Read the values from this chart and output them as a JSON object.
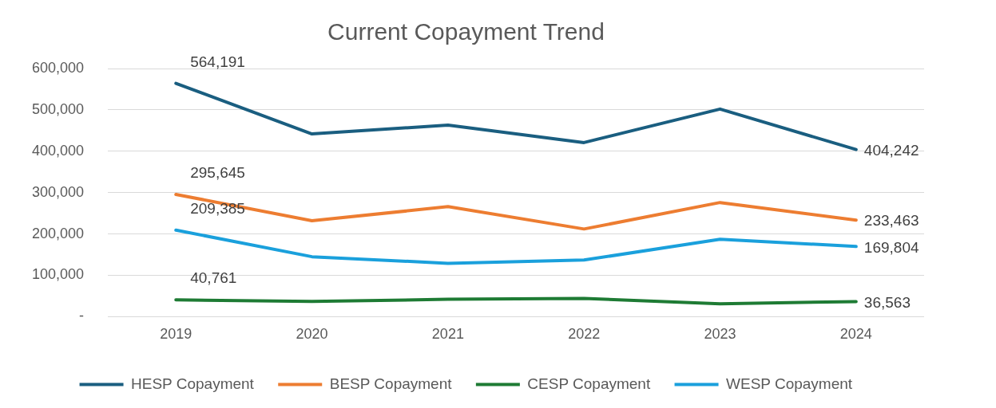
{
  "chart_data": {
    "type": "line",
    "title": "Current Copayment Trend",
    "categories": [
      "2019",
      "2020",
      "2021",
      "2022",
      "2023",
      "2024"
    ],
    "series": [
      {
        "name": "HESP Copayment",
        "color": "#1a5e80",
        "values": [
          564191,
          442000,
          463000,
          421000,
          502000,
          404242
        ],
        "value_labels": [
          "564,191",
          null,
          null,
          null,
          null,
          "404,242"
        ]
      },
      {
        "name": "BESP Copayment",
        "color": "#ed7d31",
        "values": [
          295645,
          232000,
          266000,
          212000,
          276000,
          233463
        ],
        "value_labels": [
          "295,645",
          null,
          null,
          null,
          null,
          "233,463"
        ]
      },
      {
        "name": "CESP Copayment",
        "color": "#1e7b34",
        "values": [
          40761,
          37000,
          42000,
          44000,
          31000,
          36563
        ],
        "value_labels": [
          "40,761",
          null,
          null,
          null,
          null,
          "36,563"
        ]
      },
      {
        "name": "WESP Copayment",
        "color": "#1aa0dc",
        "values": [
          209385,
          145000,
          129000,
          137000,
          187000,
          169804
        ],
        "value_labels": [
          "209,385",
          null,
          null,
          null,
          null,
          "169,804"
        ]
      }
    ],
    "ylim": [
      0,
      600000
    ],
    "yticks": [
      {
        "value": 0,
        "label": "-"
      },
      {
        "value": 100000,
        "label": "100,000"
      },
      {
        "value": 200000,
        "label": "200,000"
      },
      {
        "value": 300000,
        "label": "300,000"
      },
      {
        "value": 400000,
        "label": "400,000"
      },
      {
        "value": 500000,
        "label": "500,000"
      },
      {
        "value": 600000,
        "label": "600,000"
      }
    ],
    "grid": "y",
    "legend": "bottom",
    "marker": "none",
    "line_style": "solid"
  }
}
